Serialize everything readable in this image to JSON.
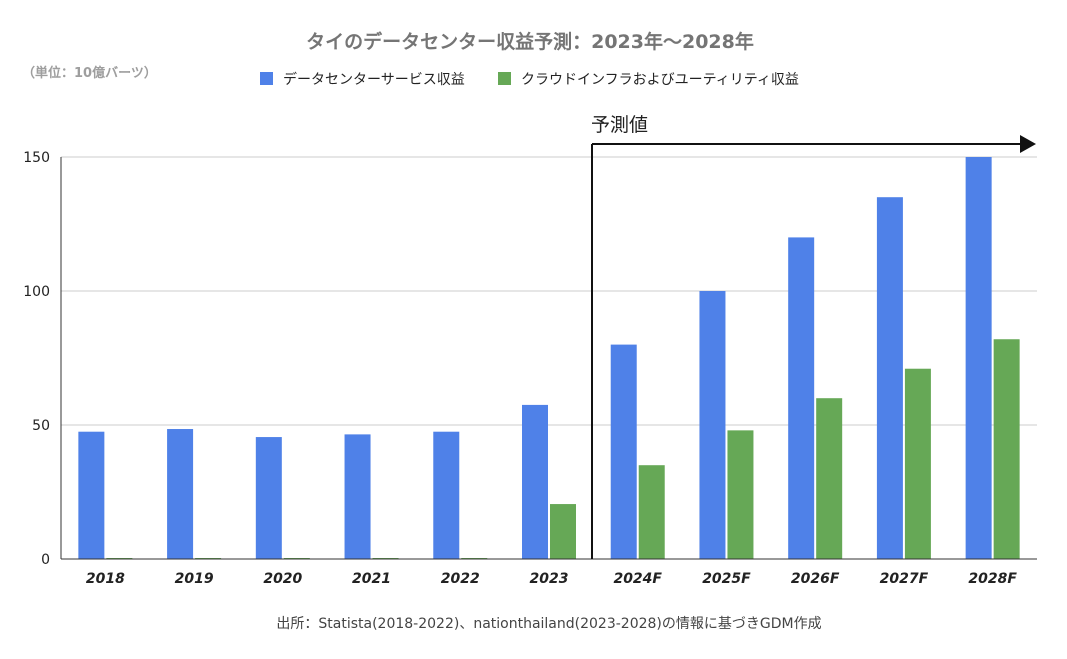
{
  "chart_data": {
    "type": "bar",
    "title": "タイのデータセンター収益予測：2023年〜2028年",
    "unit_label": "（単位：10億バーツ）",
    "categories": [
      "2018",
      "2019",
      "2020",
      "2021",
      "2022",
      "2023",
      "2024F",
      "2025F",
      "2026F",
      "2027F",
      "2028F"
    ],
    "series": [
      {
        "name": "データセンターサービス収益",
        "color": "#4f81e8",
        "values": [
          47.5,
          48.5,
          45.5,
          46.5,
          47.5,
          57.5,
          80,
          100,
          120,
          135,
          150
        ]
      },
      {
        "name": "クラウドインフラおよびユーティリティ収益",
        "color": "#66a856",
        "values": [
          0,
          0,
          0,
          0,
          0,
          20.5,
          35,
          48,
          60,
          71,
          82
        ]
      }
    ],
    "ylim": [
      0,
      150
    ],
    "yticks": [
      0,
      50,
      100,
      150
    ],
    "grid": true,
    "legend_position": "top-center",
    "forecast_annotation": {
      "label": "予測値",
      "start_category": "2024F"
    },
    "source_note": "出所：Statista(2018-2022)、nationthailand(2023-2028)の情報に基づきGDM作成"
  }
}
